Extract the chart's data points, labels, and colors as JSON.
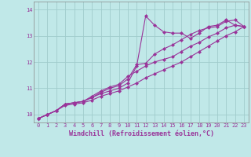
{
  "title": "",
  "xlabel": "Windchill (Refroidissement éolien,°C)",
  "ylabel": "",
  "bg_color": "#c0e8e8",
  "grid_color": "#a0cccc",
  "line_color": "#993399",
  "x_ticks": [
    0,
    1,
    2,
    3,
    4,
    5,
    6,
    7,
    8,
    9,
    10,
    11,
    12,
    13,
    14,
    15,
    16,
    17,
    18,
    19,
    20,
    21,
    22,
    23
  ],
  "y_ticks": [
    10,
    11,
    12,
    13,
    14
  ],
  "xlim": [
    -0.5,
    23.5
  ],
  "ylim": [
    9.7,
    14.3
  ],
  "series": [
    [
      9.85,
      10.0,
      10.15,
      10.4,
      10.45,
      10.5,
      10.65,
      10.8,
      10.9,
      11.0,
      11.2,
      11.85,
      13.75,
      13.4,
      13.15,
      13.1,
      13.1,
      12.9,
      13.1,
      13.35,
      13.4,
      13.6,
      13.4,
      13.35
    ],
    [
      9.85,
      10.0,
      10.15,
      10.4,
      10.45,
      10.5,
      10.65,
      10.85,
      11.0,
      11.1,
      11.35,
      11.9,
      11.95,
      12.3,
      12.5,
      12.65,
      12.85,
      13.05,
      13.2,
      13.3,
      13.35,
      13.55,
      13.6,
      13.35
    ],
    [
      9.85,
      10.0,
      10.15,
      10.4,
      10.45,
      10.5,
      10.7,
      10.9,
      11.05,
      11.15,
      11.45,
      11.65,
      11.85,
      12.0,
      12.1,
      12.2,
      12.4,
      12.6,
      12.75,
      12.95,
      13.1,
      13.3,
      13.4,
      13.35
    ],
    [
      9.85,
      10.0,
      10.15,
      10.35,
      10.4,
      10.45,
      10.55,
      10.7,
      10.8,
      10.9,
      11.05,
      11.2,
      11.4,
      11.55,
      11.7,
      11.85,
      12.0,
      12.2,
      12.4,
      12.6,
      12.8,
      13.0,
      13.15,
      13.35
    ]
  ],
  "marker": "D",
  "markersize": 2.0,
  "linewidth": 0.8,
  "tick_fontsize": 5.0,
  "xlabel_fontsize": 6.0
}
